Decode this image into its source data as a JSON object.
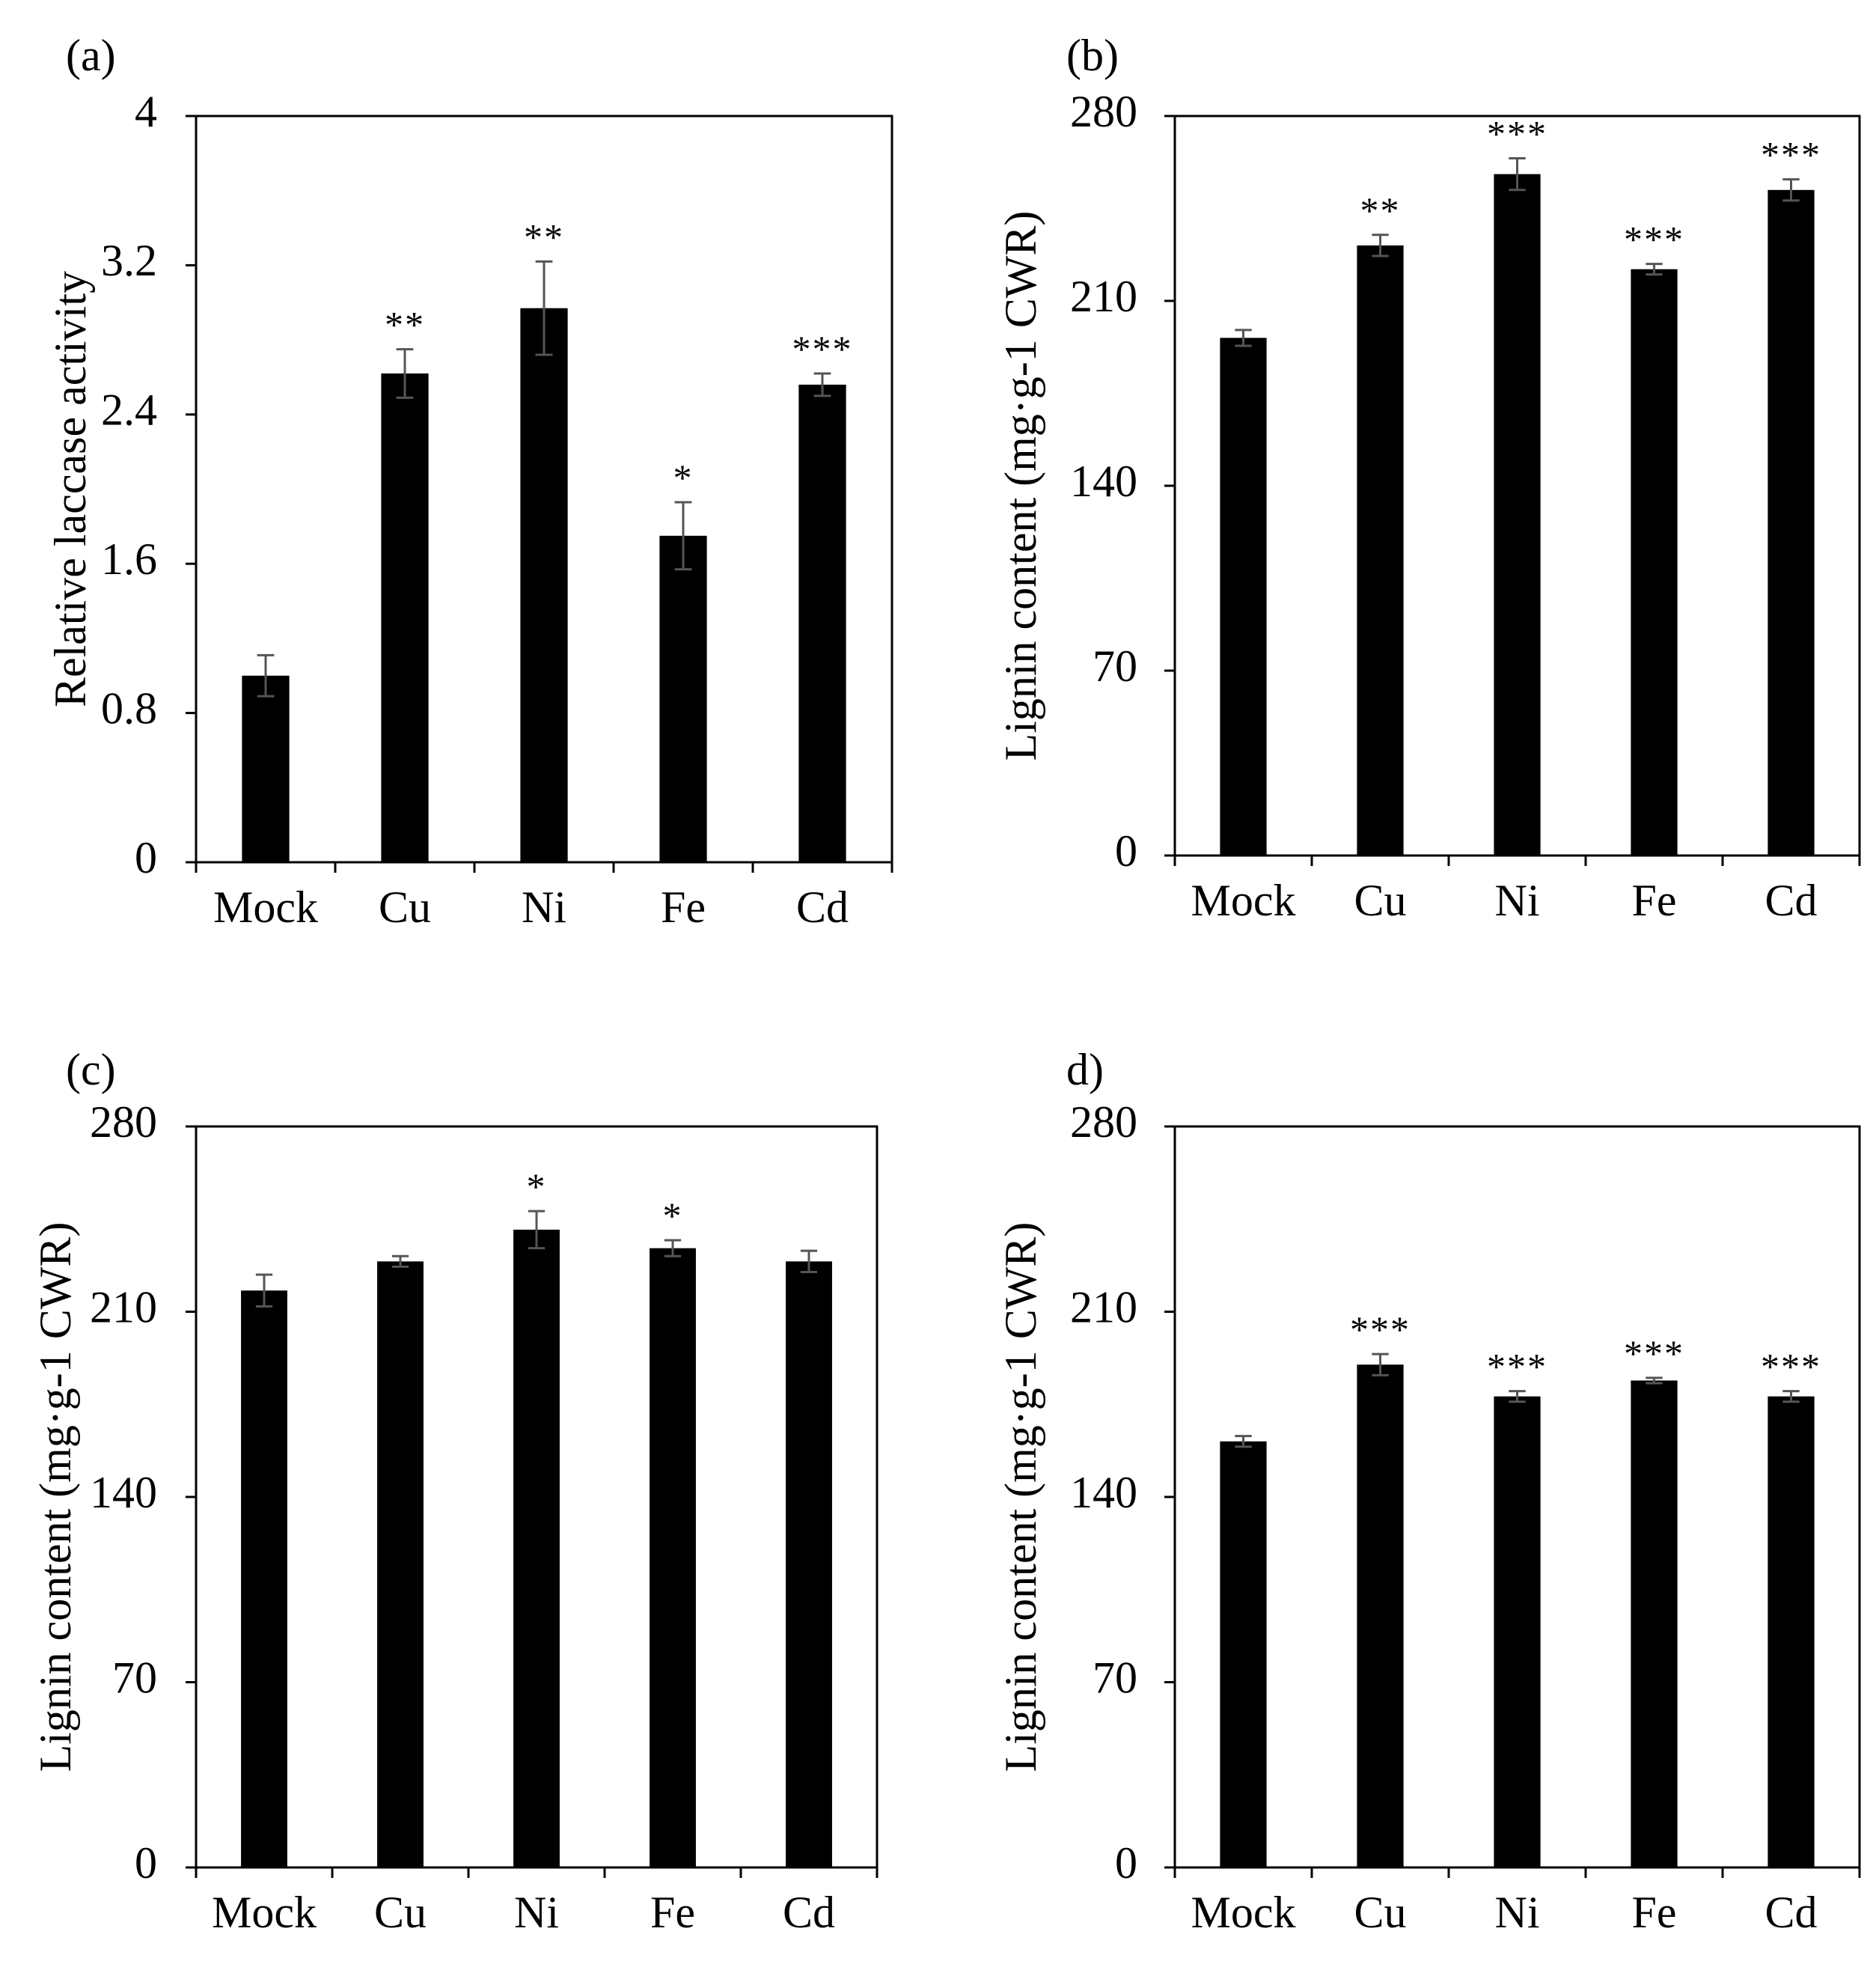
{
  "chart_data": [
    {
      "type": "bar",
      "panel": "(a)",
      "categories": [
        "Mock",
        "Cu",
        "Ni",
        "Fe",
        "Cd"
      ],
      "values": [
        1.0,
        2.62,
        2.97,
        1.75,
        2.56
      ],
      "errors": [
        0.11,
        0.13,
        0.25,
        0.18,
        0.06
      ],
      "significance": [
        "",
        "**",
        "**",
        "*",
        "***"
      ],
      "ylabel": "Relative laccase activity",
      "xlabel": "",
      "ylim": [
        0,
        4
      ],
      "yticks": [
        "0",
        "0.8",
        "1.6",
        "2.4",
        "3.2",
        "4"
      ]
    },
    {
      "type": "bar",
      "panel": "(b)",
      "categories": [
        "Mock",
        "Cu",
        "Ni",
        "Fe",
        "Cd"
      ],
      "values": [
        196,
        231,
        258,
        222,
        252
      ],
      "errors": [
        3,
        4,
        6,
        2,
        4
      ],
      "significance": [
        "",
        "**",
        "***",
        "***",
        "***"
      ],
      "ylabel": "Lignin content (mg·g-1  CWR)",
      "xlabel": "",
      "ylim": [
        0,
        280
      ],
      "yticks": [
        "0",
        "70",
        "140",
        "210",
        "280"
      ]
    },
    {
      "type": "bar",
      "panel": "(c)",
      "categories": [
        "Mock",
        "Cu",
        "Ni",
        "Fe",
        "Cd"
      ],
      "values": [
        218,
        229,
        241,
        234,
        229
      ],
      "errors": [
        6,
        2,
        7,
        3,
        4
      ],
      "significance": [
        "",
        "",
        "*",
        "*",
        ""
      ],
      "ylabel": "Lignin content (mg·g-1  CWR)",
      "xlabel": "",
      "ylim": [
        0,
        280
      ],
      "yticks": [
        "0",
        "70",
        "140",
        "210",
        "280"
      ]
    },
    {
      "type": "bar",
      "panel": "d)",
      "categories": [
        "Mock",
        "Cu",
        "Ni",
        "Fe",
        "Cd"
      ],
      "values": [
        161,
        190,
        178,
        184,
        178
      ],
      "errors": [
        2,
        4,
        2,
        1,
        2
      ],
      "significance": [
        "",
        "***",
        "***",
        "***",
        "***"
      ],
      "ylabel": "Lignin content (mg·g-1  CWR)",
      "xlabel": "",
      "ylim": [
        0,
        280
      ],
      "yticks": [
        "0",
        "70",
        "140",
        "210",
        "280"
      ]
    }
  ],
  "colors": {
    "bar": "#000000",
    "axis": "#000000",
    "errorbar": "#555555"
  }
}
